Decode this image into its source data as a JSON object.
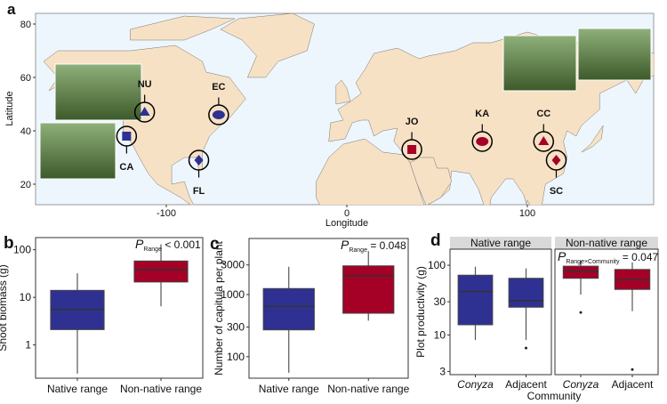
{
  "colors": {
    "native": "#2e3192",
    "nonnative": "#a50026",
    "land": "#f7e1c4",
    "sea": "#eef6fd",
    "strip": "#d9d9d9"
  },
  "chart_data": [
    {
      "panel": "a",
      "type": "map",
      "xlabel": "Longitude",
      "ylabel": "Latitude",
      "xticks": [
        -100,
        0,
        100
      ],
      "yticks": [
        20,
        40,
        60,
        80
      ],
      "xlim": [
        -170,
        170
      ],
      "ylim": [
        10,
        84
      ],
      "sites": [
        {
          "label": "NU",
          "lon": -112,
          "lat": 47,
          "range": "native",
          "marker": "triangle"
        },
        {
          "label": "EC",
          "lon": -71,
          "lat": 46,
          "range": "native",
          "marker": "circle"
        },
        {
          "label": "CA",
          "lon": -122,
          "lat": 38,
          "range": "native",
          "marker": "square"
        },
        {
          "label": "FL",
          "lon": -82,
          "lat": 29,
          "range": "native",
          "marker": "diamond"
        },
        {
          "label": "JO",
          "lon": 36,
          "lat": 33,
          "range": "nonnative",
          "marker": "square"
        },
        {
          "label": "KA",
          "lon": 75,
          "lat": 36,
          "range": "nonnative",
          "marker": "circle"
        },
        {
          "label": "CC",
          "lon": 109,
          "lat": 36,
          "range": "nonnative",
          "marker": "triangle"
        },
        {
          "label": "SC",
          "lon": 116,
          "lat": 29,
          "range": "nonnative",
          "marker": "diamond"
        }
      ]
    },
    {
      "panel": "b",
      "type": "box",
      "ylabel": "Shoot biomass (g)",
      "scale": "log",
      "yticks": [
        1,
        10,
        100
      ],
      "ylim": [
        0.2,
        180
      ],
      "annotation": {
        "p": "P",
        "sub": "Range",
        "text": " < 0.001"
      },
      "categories": [
        "Native range",
        "Non-native range"
      ],
      "boxes": [
        {
          "min": 0.25,
          "q1": 2.1,
          "median": 5.5,
          "q3": 14,
          "max": 32,
          "range": "native"
        },
        {
          "min": 6.5,
          "q1": 21,
          "median": 38,
          "q3": 58,
          "max": 130,
          "range": "nonnative"
        }
      ]
    },
    {
      "panel": "c",
      "type": "box",
      "ylabel": "Number of capitula per plant",
      "scale": "log",
      "yticks": [
        100,
        300,
        1000,
        3000
      ],
      "ylim": [
        45,
        8000
      ],
      "annotation": {
        "p": "P",
        "sub": "Range",
        "text": " = 0.048"
      },
      "categories": [
        "Native range",
        "Non-native range"
      ],
      "boxes": [
        {
          "min": 55,
          "q1": 270,
          "median": 650,
          "q3": 1250,
          "max": 2800,
          "range": "native"
        },
        {
          "min": 380,
          "q1": 500,
          "median": 2000,
          "q3": 2900,
          "max": 5000,
          "range": "nonnative"
        }
      ]
    },
    {
      "panel": "d",
      "type": "box",
      "ylabel": "Plot productivity (g)",
      "xlabel": "Community",
      "scale": "log",
      "yticks": [
        3,
        10,
        30,
        100
      ],
      "ylim": [
        2.7,
        170
      ],
      "annotation": {
        "p": "P",
        "sub": "Range×Community",
        "text": " = 0.047"
      },
      "facets": [
        {
          "title": "Native range",
          "categories": [
            "Conyza",
            "Adjacent"
          ],
          "boxes": [
            {
              "min": 8.5,
              "q1": 14,
              "median": 42,
              "q3": 72,
              "max": 95,
              "outliers": [],
              "range": "native"
            },
            {
              "min": 8.5,
              "q1": 25,
              "median": 31,
              "q3": 65,
              "max": 90,
              "outliers": [
                6.5
              ],
              "range": "native"
            }
          ]
        },
        {
          "title": "Non-native range",
          "categories": [
            "Conyza",
            "Adjacent"
          ],
          "boxes": [
            {
              "min": 38,
              "q1": 65,
              "median": 82,
              "q3": 97,
              "max": 115,
              "outliers": [
                21
              ],
              "range": "nonnative"
            },
            {
              "min": 22,
              "q1": 45,
              "median": 62,
              "q3": 87,
              "max": 110,
              "outliers": [
                3.2
              ],
              "range": "nonnative"
            }
          ]
        }
      ]
    }
  ],
  "labels": {
    "a": "a",
    "b": "b",
    "c": "c",
    "d": "d"
  }
}
